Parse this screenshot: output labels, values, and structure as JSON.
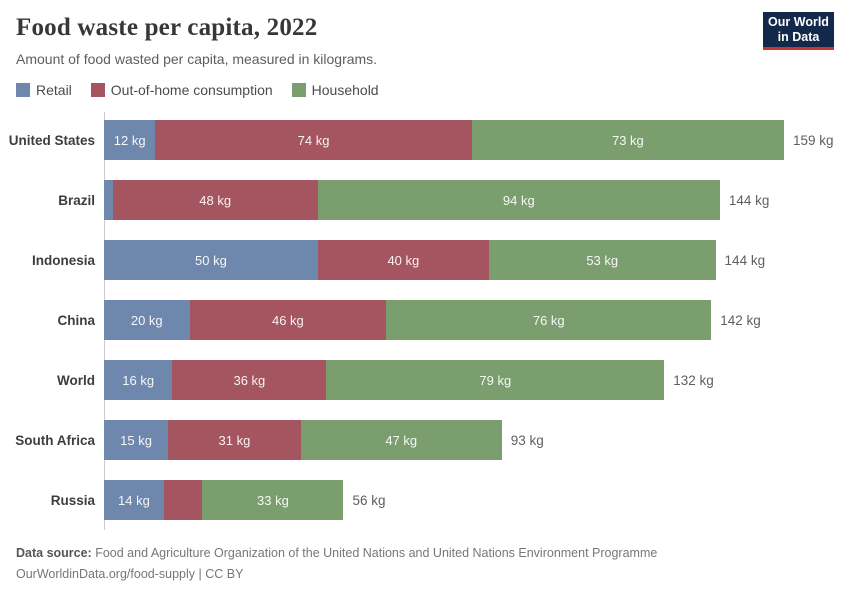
{
  "header": {
    "title": "Food waste per capita, 2022",
    "subtitle": "Amount of food wasted per capita, measured in kilograms.",
    "logo": {
      "line1": "Our World",
      "line2": "in Data"
    }
  },
  "legend": [
    {
      "name": "Retail",
      "color": "#6e87ad"
    },
    {
      "name": "Out-of-home consumption",
      "color": "#a5555f"
    },
    {
      "name": "Household",
      "color": "#7b9e6e"
    }
  ],
  "chart_data": {
    "type": "bar",
    "orientation": "horizontal",
    "stacked": true,
    "unit": "kg",
    "title": "Food waste per capita, 2022",
    "xlabel": "",
    "ylabel": "",
    "xlim": [
      0,
      159
    ],
    "grid": false,
    "legend_position": "top",
    "categories": [
      "United States",
      "Brazil",
      "Indonesia",
      "China",
      "World",
      "South Africa",
      "Russia"
    ],
    "series": [
      {
        "name": "Retail",
        "color": "#6e87ad",
        "values": [
          12,
          2,
          50,
          20,
          16,
          15,
          14
        ],
        "labels": [
          "12 kg",
          "",
          "50 kg",
          "20 kg",
          "16 kg",
          "15 kg",
          "14 kg"
        ]
      },
      {
        "name": "Out-of-home consumption",
        "color": "#a5555f",
        "values": [
          74,
          48,
          40,
          46,
          36,
          31,
          9
        ],
        "labels": [
          "74 kg",
          "48 kg",
          "40 kg",
          "46 kg",
          "36 kg",
          "31 kg",
          ""
        ]
      },
      {
        "name": "Household",
        "color": "#7b9e6e",
        "values": [
          73,
          94,
          53,
          76,
          79,
          47,
          33
        ],
        "labels": [
          "73 kg",
          "94 kg",
          "53 kg",
          "76 kg",
          "79 kg",
          "47 kg",
          "33 kg"
        ]
      }
    ],
    "totals": [
      159,
      144,
      144,
      142,
      132,
      93,
      56
    ],
    "total_labels": [
      "159 kg",
      "144 kg",
      "144 kg",
      "142 kg",
      "132 kg",
      "93 kg",
      "56 kg"
    ]
  },
  "footer": {
    "source_label": "Data source:",
    "source_text": "Food and Agriculture Organization of the United Nations and United Nations Environment Programme",
    "license_text": "OurWorldinData.org/food-supply | CC BY"
  }
}
